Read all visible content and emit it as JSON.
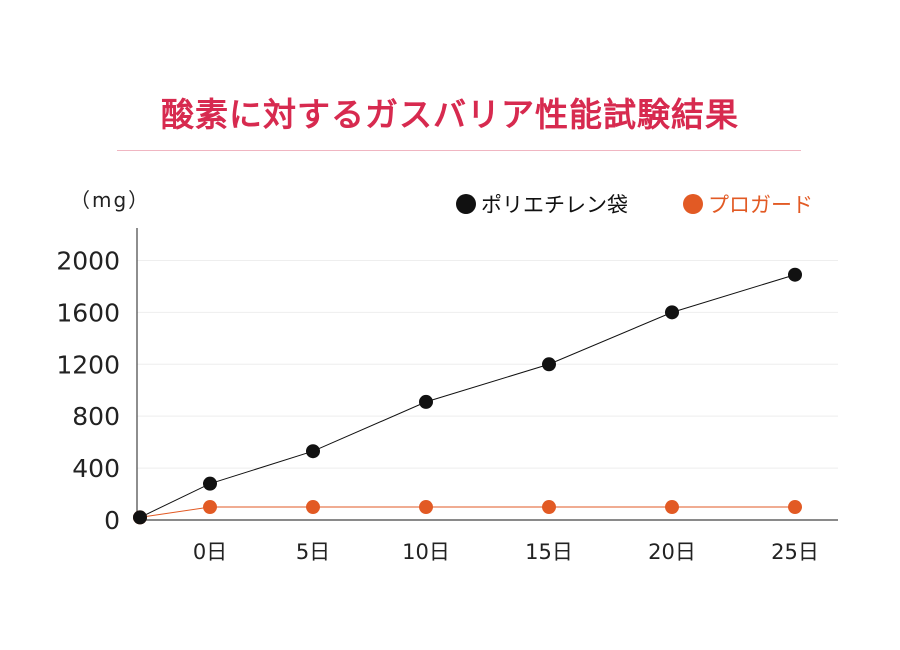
{
  "title": "酸素に対するガスバリア性能試験結果",
  "chart_data": {
    "type": "line",
    "unit_label": "（mg）",
    "x_categories": [
      "",
      "0日",
      "5日",
      "10日",
      "15日",
      "20日",
      "25日"
    ],
    "y_ticks": [
      "0",
      "400",
      "800",
      "1200",
      "1600",
      "2000"
    ],
    "ylim": [
      0,
      2250
    ],
    "grid": true,
    "legend_position": "top-right",
    "colors": {
      "black": "#111111",
      "orange": "#e25a24"
    },
    "series": [
      {
        "name": "ポリエチレン袋",
        "color": "#111111",
        "values": [
          20,
          280,
          530,
          910,
          1200,
          1600,
          1890
        ]
      },
      {
        "name": "プロガード",
        "color": "#e25a24",
        "values": [
          20,
          100,
          100,
          100,
          100,
          100,
          100
        ]
      }
    ]
  }
}
